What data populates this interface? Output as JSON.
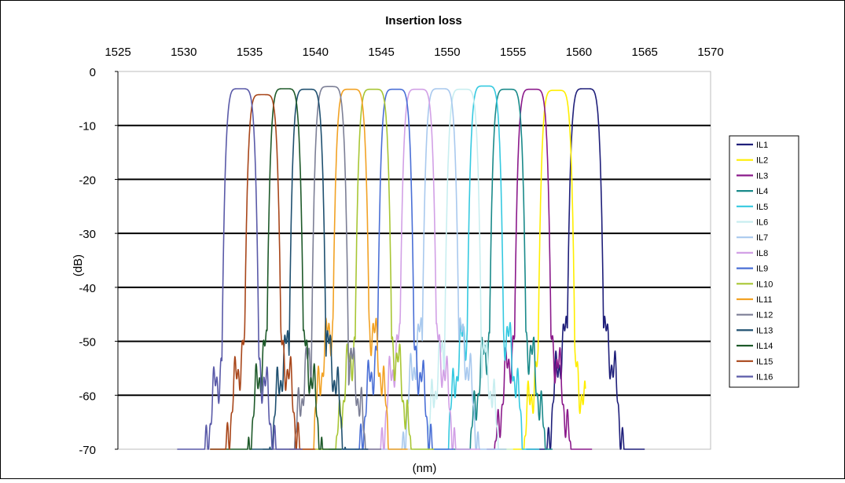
{
  "chart_data": {
    "type": "line",
    "title": "Insertion loss",
    "xlabel": "(nm)",
    "ylabel": "(dB)",
    "xlim": [
      1525,
      1570
    ],
    "ylim": [
      -70,
      0
    ],
    "x_ticks": [
      "1525",
      "1530",
      "1535",
      "1540",
      "1545",
      "1550",
      "1555",
      "1560",
      "1565",
      "1570"
    ],
    "y_ticks": [
      "0",
      "-10",
      "-20",
      "-30",
      "-40",
      "-50",
      "-60",
      "-70"
    ],
    "x_axis_position": "top",
    "grid": "horizontal",
    "legend_position": "right",
    "series": [
      {
        "name": "IL1",
        "color": "#1f1f7a",
        "center": 1560.5,
        "peak": -3.2,
        "side": -48,
        "lo": 1556.0,
        "hi": 1565.0
      },
      {
        "name": "IL2",
        "color": "#ffee00",
        "center": 1558.3,
        "peak": -3.5,
        "side": -55,
        "lo": 1554.0,
        "hi": 1560.5
      },
      {
        "name": "IL3",
        "color": "#8b1a8b",
        "center": 1556.5,
        "peak": -3.3,
        "side": -50,
        "lo": 1553.0,
        "hi": 1561.0
      },
      {
        "name": "IL4",
        "color": "#1a8a8a",
        "center": 1554.6,
        "peak": -3.3,
        "side": -49,
        "lo": 1550.5,
        "hi": 1558.0
      },
      {
        "name": "IL5",
        "color": "#35c9e0",
        "center": 1552.9,
        "peak": -2.7,
        "side": -47,
        "lo": 1549.0,
        "hi": 1557.0
      },
      {
        "name": "IL6",
        "color": "#c8eef0",
        "center": 1551.2,
        "peak": -3.3,
        "side": -51,
        "lo": 1547.5,
        "hi": 1555.0
      },
      {
        "name": "IL7",
        "color": "#a9c9ee",
        "center": 1549.5,
        "peak": -3.2,
        "side": -48,
        "lo": 1545.0,
        "hi": 1554.5
      },
      {
        "name": "IL8",
        "color": "#d2a0e6",
        "center": 1547.8,
        "peak": -3.3,
        "side": -50,
        "lo": 1543.0,
        "hi": 1552.5
      },
      {
        "name": "IL9",
        "color": "#4a6fd6",
        "center": 1546.1,
        "peak": -3.3,
        "side": -52,
        "lo": 1541.0,
        "hi": 1550.5
      },
      {
        "name": "IL10",
        "color": "#a8c634",
        "center": 1544.4,
        "peak": -3.3,
        "side": -50,
        "lo": 1540.0,
        "hi": 1549.0
      },
      {
        "name": "IL11",
        "color": "#f2a224",
        "center": 1542.7,
        "peak": -3.3,
        "side": -46,
        "lo": 1538.0,
        "hi": 1547.0
      },
      {
        "name": "IL12",
        "color": "#7c7f96",
        "center": 1541.1,
        "peak": -2.8,
        "side": -52,
        "lo": 1536.0,
        "hi": 1545.0
      },
      {
        "name": "IL13",
        "color": "#1f5070",
        "center": 1539.4,
        "peak": -3.3,
        "side": -50,
        "lo": 1535.0,
        "hi": 1544.0
      },
      {
        "name": "IL14",
        "color": "#1e5a2a",
        "center": 1537.7,
        "peak": -3.2,
        "side": -51,
        "lo": 1532.0,
        "hi": 1542.0
      },
      {
        "name": "IL15",
        "color": "#a8461a",
        "center": 1536.0,
        "peak": -4.3,
        "side": -51,
        "lo": 1532.0,
        "hi": 1540.0
      },
      {
        "name": "IL16",
        "color": "#5a5aa8",
        "center": 1534.3,
        "peak": -3.2,
        "side": -54,
        "lo": 1529.5,
        "hi": 1539.0
      }
    ]
  }
}
